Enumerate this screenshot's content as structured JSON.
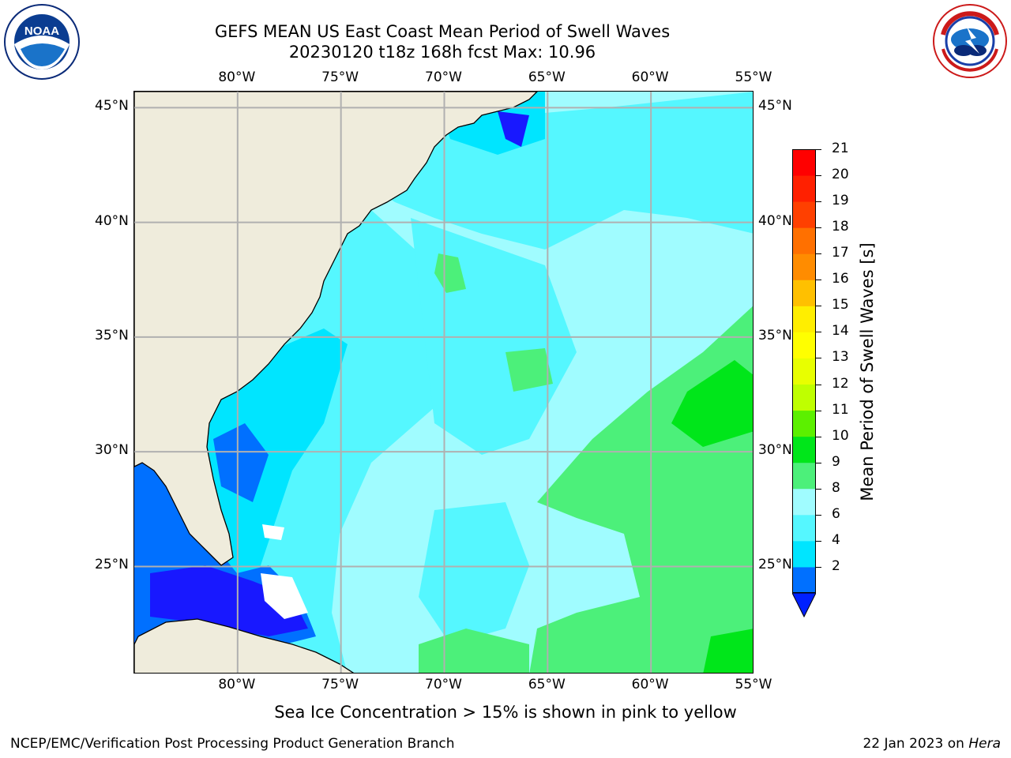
{
  "title": {
    "line1": "GEFS MEAN US East Coast Mean Period of Swell Waves",
    "line2": "20230120 t18z 168h fcst   Max: 10.96"
  },
  "caption": "Sea Ice Concentration > 15% is shown in pink to yellow",
  "footer": {
    "left": "NCEP/EMC/Verification Post Processing Product Generation Branch",
    "right_date": "22 Jan 2023 on ",
    "right_machine": "Hera"
  },
  "logos": {
    "noaa": {
      "text": "NOAA",
      "ring": "NATIONAL OCEANIC AND ATMOSPHERIC ADMINISTRATION · U.S. DEPARTMENT OF COMMERCE"
    },
    "nws": {
      "ring": "NATIONAL WEATHER SERVICE"
    }
  },
  "map": {
    "lon_range": [
      -85,
      -55
    ],
    "lat_range": [
      20.3,
      45.7
    ],
    "longitude_labels": [
      "80°W",
      "75°W",
      "70°W",
      "65°W",
      "60°W",
      "55°W"
    ],
    "longitude_values": [
      -80,
      -75,
      -70,
      -65,
      -60,
      -55
    ],
    "latitude_labels": [
      "45°N",
      "40°N",
      "35°N",
      "30°N",
      "25°N"
    ],
    "latitude_values": [
      45,
      40,
      35,
      30,
      25
    ],
    "land_color": "#efecdc",
    "grid_color": "#b0b0b0"
  },
  "colorbar": {
    "title": "Mean Period of Swell Waves [s]",
    "tick_labels": [
      "21",
      "20",
      "19",
      "18",
      "17",
      "16",
      "15",
      "14",
      "13",
      "12",
      "11",
      "10",
      "9",
      "8",
      "6",
      "4",
      "2"
    ],
    "bins": [
      {
        "from": 2,
        "to": 4,
        "color": "#0070ff"
      },
      {
        "from": 4,
        "to": 6,
        "color": "#00e5ff"
      },
      {
        "from": 6,
        "to": 8,
        "color": "#55f7ff"
      },
      {
        "from": 8,
        "to": 9,
        "color": "#a0fcff"
      },
      {
        "from": 9,
        "to": 10,
        "color": "#4cf07a"
      },
      {
        "from": 10,
        "to": 11,
        "color": "#00e61a"
      },
      {
        "from": 11,
        "to": 12,
        "color": "#5cf000"
      },
      {
        "from": 12,
        "to": 13,
        "color": "#bfff00"
      },
      {
        "from": 13,
        "to": 14,
        "color": "#e8ff00"
      },
      {
        "from": 14,
        "to": 15,
        "color": "#ffff00"
      },
      {
        "from": 15,
        "to": 16,
        "color": "#ffee00"
      },
      {
        "from": 16,
        "to": 17,
        "color": "#ffc000"
      },
      {
        "from": 17,
        "to": 18,
        "color": "#ff8c00"
      },
      {
        "from": 18,
        "to": 19,
        "color": "#ff7000"
      },
      {
        "from": 19,
        "to": 20,
        "color": "#ff4000"
      },
      {
        "from": 20,
        "to": 21,
        "color": "#ff2000"
      },
      {
        "from": 21,
        "to": 22,
        "color": "#ff0000"
      }
    ],
    "under_color": "#0020ff"
  },
  "field_colors": {
    "deep_blue": "#1818ff",
    "blue": "#0070ff",
    "cyan": "#00e5ff",
    "light_cyan": "#55f7ff",
    "pale": "#a0fcff",
    "green": "#4cf07a",
    "bright_green": "#00e61a",
    "no_data": "#ffffff"
  }
}
